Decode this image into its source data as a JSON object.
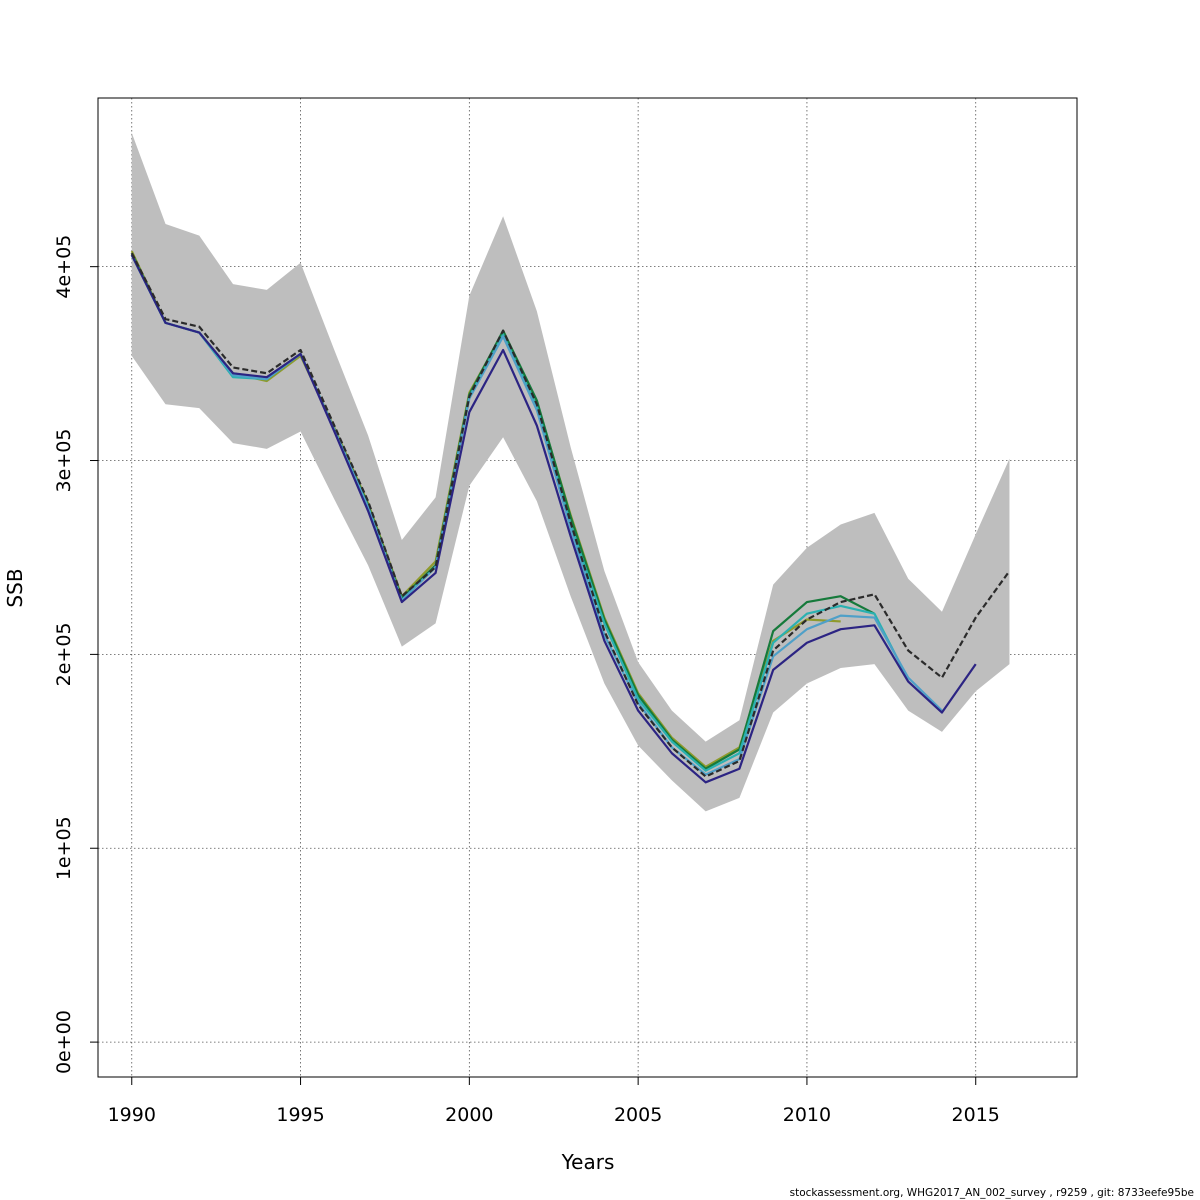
{
  "footer": "stockassessment.org, WHG2017_AN_002_survey , r9259 , git: 8733eefe95be",
  "chart_data": {
    "type": "line",
    "xlabel": "Years",
    "ylabel": "SSB",
    "xlim": [
      1989,
      2018
    ],
    "ylim": [
      -18000,
      487000
    ],
    "x_ticks": [
      1990,
      1995,
      2000,
      2005,
      2010,
      2015
    ],
    "x_tick_labels": [
      "1990",
      "1995",
      "2000",
      "2005",
      "2010",
      "2015"
    ],
    "y_ticks": [
      0,
      100000,
      200000,
      300000,
      400000
    ],
    "y_tick_labels": [
      "0e+00",
      "1e+05",
      "2e+05",
      "3e+05",
      "4e+05"
    ],
    "grid": true,
    "band": {
      "color": "#bebebe",
      "x": [
        1990,
        1991,
        1992,
        1993,
        1994,
        1995,
        1996,
        1997,
        1998,
        1999,
        2000,
        2001,
        2002,
        2003,
        2004,
        2005,
        2006,
        2007,
        2008,
        2009,
        2010,
        2011,
        2012,
        2013,
        2014,
        2015,
        2016
      ],
      "lower": [
        354000,
        329000,
        327000,
        309000,
        306000,
        315000,
        280000,
        246000,
        204000,
        216000,
        287000,
        312000,
        279000,
        230000,
        185000,
        153000,
        135000,
        119000,
        126000,
        170000,
        185000,
        193000,
        195000,
        171000,
        160000,
        181000,
        195000
      ],
      "upper": [
        469000,
        422000,
        416000,
        391000,
        388000,
        402000,
        357000,
        313000,
        259000,
        281000,
        385000,
        426000,
        377000,
        307000,
        243000,
        196000,
        171000,
        155000,
        166000,
        236000,
        255000,
        267000,
        273000,
        239000,
        222000,
        262000,
        301000
      ]
    },
    "series": [
      {
        "color": "#2b2b2b",
        "dashed": true,
        "x": [
          1990,
          1991,
          1992,
          1993,
          1994,
          1995,
          1996,
          1997,
          1998,
          1999,
          2000,
          2001,
          2002,
          2003,
          2004,
          2005,
          2006,
          2007,
          2008,
          2009,
          2010,
          2011,
          2012,
          2013,
          2014,
          2015,
          2016
        ],
        "values": [
          407000,
          373000,
          369000,
          348000,
          345000,
          357000,
          318000,
          279000,
          230000,
          245000,
          333000,
          367000,
          329000,
          268000,
          212000,
          174000,
          152000,
          137000,
          145000,
          202000,
          218000,
          227000,
          231000,
          202000,
          188000,
          219000,
          243000
        ]
      },
      {
        "color": "#2c2483",
        "x": [
          1990,
          1991,
          1992,
          1993,
          1994,
          1995,
          1996,
          1997,
          1998,
          1999,
          2000,
          2001,
          2002,
          2003,
          2004,
          2005,
          2006,
          2007,
          2008,
          2009,
          2010,
          2011,
          2012,
          2013,
          2014,
          2015
        ],
        "values": [
          406000,
          371000,
          366000,
          345000,
          343000,
          355000,
          315000,
          274000,
          227000,
          242000,
          325000,
          357000,
          318000,
          261000,
          207000,
          171000,
          149000,
          134000,
          141000,
          192000,
          206000,
          213000,
          215000,
          186000,
          170000,
          195000
        ]
      },
      {
        "color": "#4fa0c8",
        "x": [
          1990,
          1991,
          1992,
          1993,
          1994,
          1995,
          1996,
          1997,
          1998,
          1999,
          2000,
          2001,
          2002,
          2003,
          2004,
          2005,
          2006,
          2007,
          2008,
          2009,
          2010,
          2011,
          2012,
          2013,
          2014
        ],
        "values": [
          406000,
          371000,
          366000,
          344000,
          342000,
          355000,
          316000,
          276000,
          228000,
          245000,
          332000,
          364000,
          326000,
          265000,
          210000,
          175000,
          152000,
          138000,
          146000,
          199000,
          213000,
          220000,
          219000,
          188000,
          171000
        ]
      },
      {
        "color": "#2ab1b1",
        "x": [
          1990,
          1991,
          1992,
          1993,
          1994,
          1995,
          1996,
          1997,
          1998,
          1999,
          2000,
          2001,
          2002,
          2003,
          2004,
          2005,
          2006,
          2007,
          2008,
          2009,
          2010,
          2011,
          2012,
          2013
        ],
        "values": [
          406000,
          371000,
          366000,
          343000,
          342000,
          355000,
          316000,
          276000,
          228000,
          245000,
          333000,
          365000,
          328000,
          267000,
          216000,
          177000,
          155000,
          140000,
          149000,
          206000,
          221000,
          225000,
          221000,
          187000
        ]
      },
      {
        "color": "#167a3b",
        "x": [
          1990,
          1991,
          1992,
          1993,
          1994,
          1995,
          1996,
          1997,
          1998,
          1999,
          2000,
          2001,
          2002,
          2003,
          2004,
          2005,
          2006,
          2007,
          2008,
          2009,
          2010,
          2011,
          2012
        ],
        "values": [
          407000,
          371000,
          366000,
          345000,
          342000,
          355000,
          316000,
          277000,
          229000,
          246000,
          334000,
          367000,
          331000,
          271000,
          218000,
          179000,
          156000,
          141000,
          151000,
          212000,
          227000,
          230000,
          221000
        ]
      },
      {
        "color": "#8f9a2c",
        "x": [
          1990,
          1991,
          1992,
          1993,
          1994,
          1995,
          1996,
          1997,
          1998,
          1999,
          2000,
          2001,
          2002,
          2003,
          2004,
          2005,
          2006,
          2007,
          2008,
          2009,
          2010,
          2011
        ],
        "values": [
          408000,
          371000,
          366000,
          345000,
          341000,
          354000,
          317000,
          278000,
          230000,
          248000,
          335000,
          366000,
          330000,
          272000,
          219000,
          180000,
          157000,
          142000,
          152000,
          207000,
          218000,
          217000
        ]
      }
    ]
  }
}
